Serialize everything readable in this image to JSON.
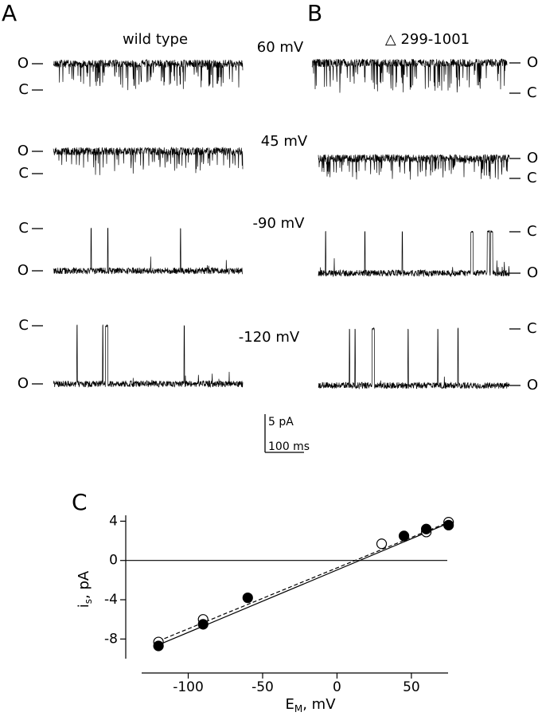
{
  "panel_a": {
    "letter": "A",
    "title": "wild type"
  },
  "panel_b": {
    "letter": "B",
    "title": "△ 299-1001"
  },
  "voltages": [
    "60 mV",
    "45 mV",
    "-90 mV",
    "-120 mV"
  ],
  "state_labels": {
    "open": "O",
    "closed": "C"
  },
  "scale_bar": {
    "current": "5 pA",
    "time": "100 ms"
  },
  "chart_data": {
    "type": "scatter",
    "panel_letter": "C",
    "x_label": {
      "main": "E",
      "sub": "M",
      "rest": ", mV"
    },
    "y_label": {
      "main": "i",
      "sub": "s",
      "rest": ", pA"
    },
    "xlim": [
      -142,
      80
    ],
    "ylim": [
      -10,
      4.6
    ],
    "xticks": [
      -100,
      -50,
      0,
      50
    ],
    "yticks": [
      4,
      0,
      -4,
      -8
    ],
    "zero_line": true,
    "series": [
      {
        "marker": "open",
        "color": "#000000",
        "x": [
          -120,
          -90,
          30,
          60,
          75
        ],
        "values": [
          -8.3,
          -6.0,
          1.7,
          2.9,
          3.9
        ]
      },
      {
        "marker": "filled",
        "color": "#000000",
        "x": [
          -120,
          -90,
          -60,
          45,
          60,
          75
        ],
        "values": [
          -8.7,
          -6.5,
          -3.8,
          2.5,
          3.2,
          3.6
        ]
      }
    ],
    "fit_lines": [
      {
        "style": "solid",
        "x": [
          -120,
          75
        ],
        "values": [
          -8.6,
          3.8
        ]
      },
      {
        "style": "dashed",
        "x": [
          -120,
          75
        ],
        "values": [
          -8.2,
          3.9
        ]
      }
    ]
  }
}
